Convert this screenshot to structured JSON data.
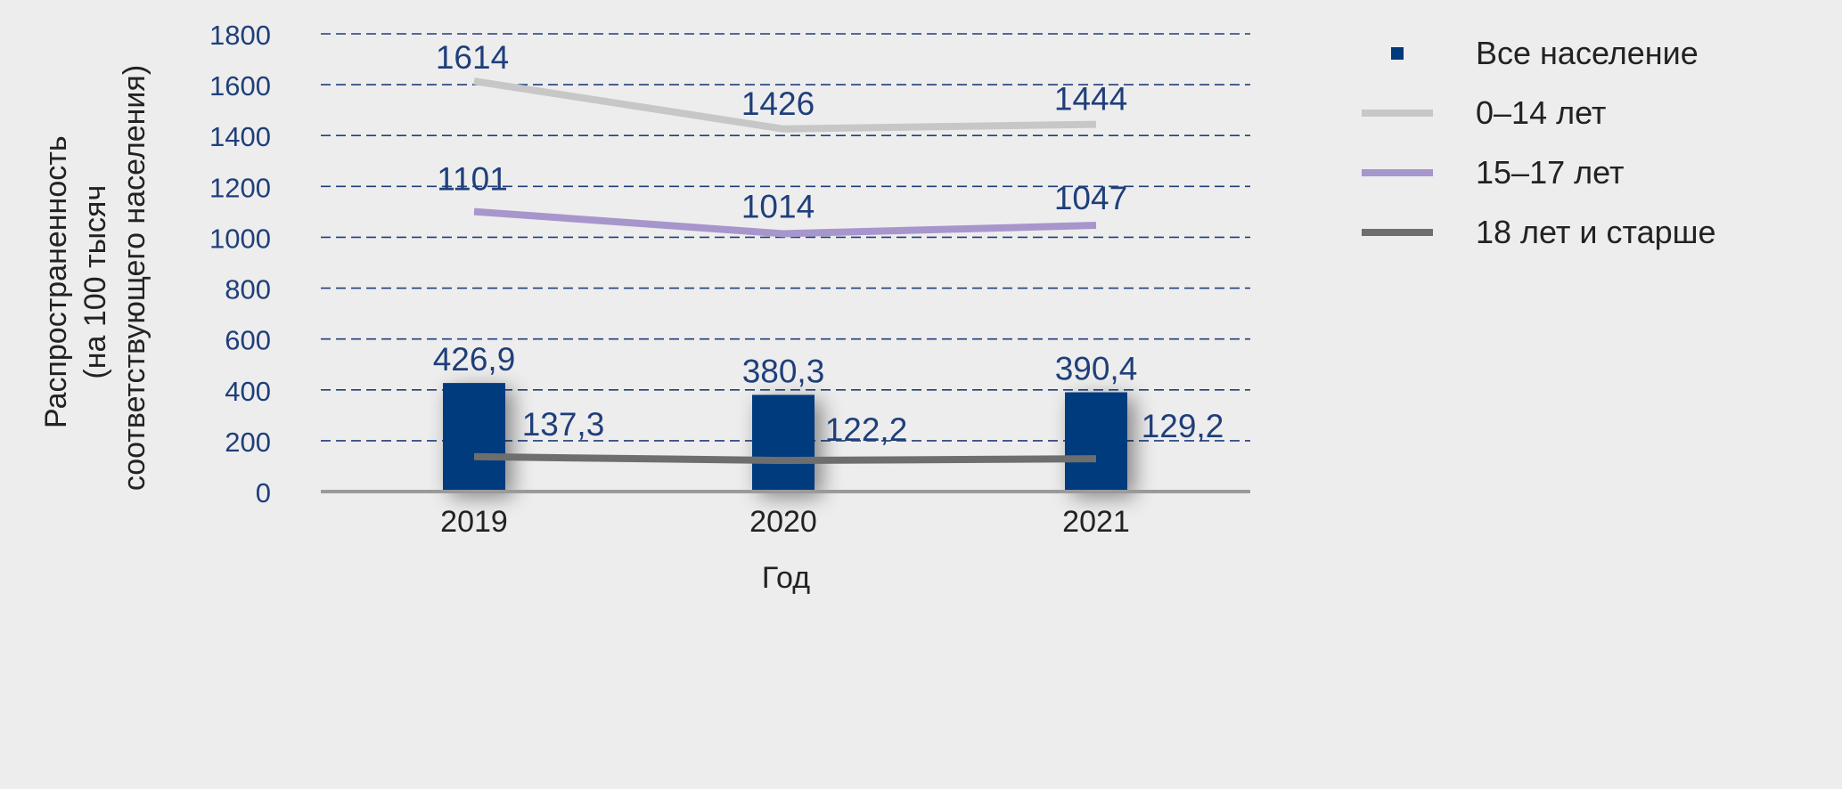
{
  "chart_data": {
    "type": "bar+line",
    "categories": [
      "2019",
      "2020",
      "2021"
    ],
    "xlabel": "Год",
    "ylabel_lines": [
      "Распространенность",
      "(на 100 тысяч",
      "соответствующего населения)"
    ],
    "ylim": [
      0,
      1800
    ],
    "yticks": [
      0,
      200,
      400,
      600,
      800,
      1000,
      1200,
      1400,
      1600,
      1800
    ],
    "grid": true,
    "legend_position": "right",
    "series": [
      {
        "name": "Все население",
        "kind": "bar",
        "color": "#003a7d",
        "values": [
          426.9,
          380.3,
          390.4
        ],
        "labels": [
          "426,9",
          "380,3",
          "390,4"
        ]
      },
      {
        "name": "0–14 лет",
        "kind": "line",
        "color": "#c7c7c7",
        "values": [
          1614,
          1426,
          1444
        ],
        "labels": [
          "1614",
          "1426",
          "1444"
        ]
      },
      {
        "name": "15–17 лет",
        "kind": "line",
        "color": "#a796cc",
        "values": [
          1101,
          1014,
          1047
        ],
        "labels": [
          "1101",
          "1014",
          "1047"
        ]
      },
      {
        "name": "18 лет и старше",
        "kind": "line",
        "color": "#6e6e6e",
        "values": [
          137.3,
          122.2,
          129.2
        ],
        "labels": [
          "137,3",
          "122,2",
          "129,2"
        ]
      }
    ],
    "colors": {
      "tick_text": "#1f3f7a",
      "label_text": "#1f3f7a",
      "axis_text": "#222222",
      "grid": "#1f3f7a",
      "axis_line": "#9a9a9a"
    }
  }
}
